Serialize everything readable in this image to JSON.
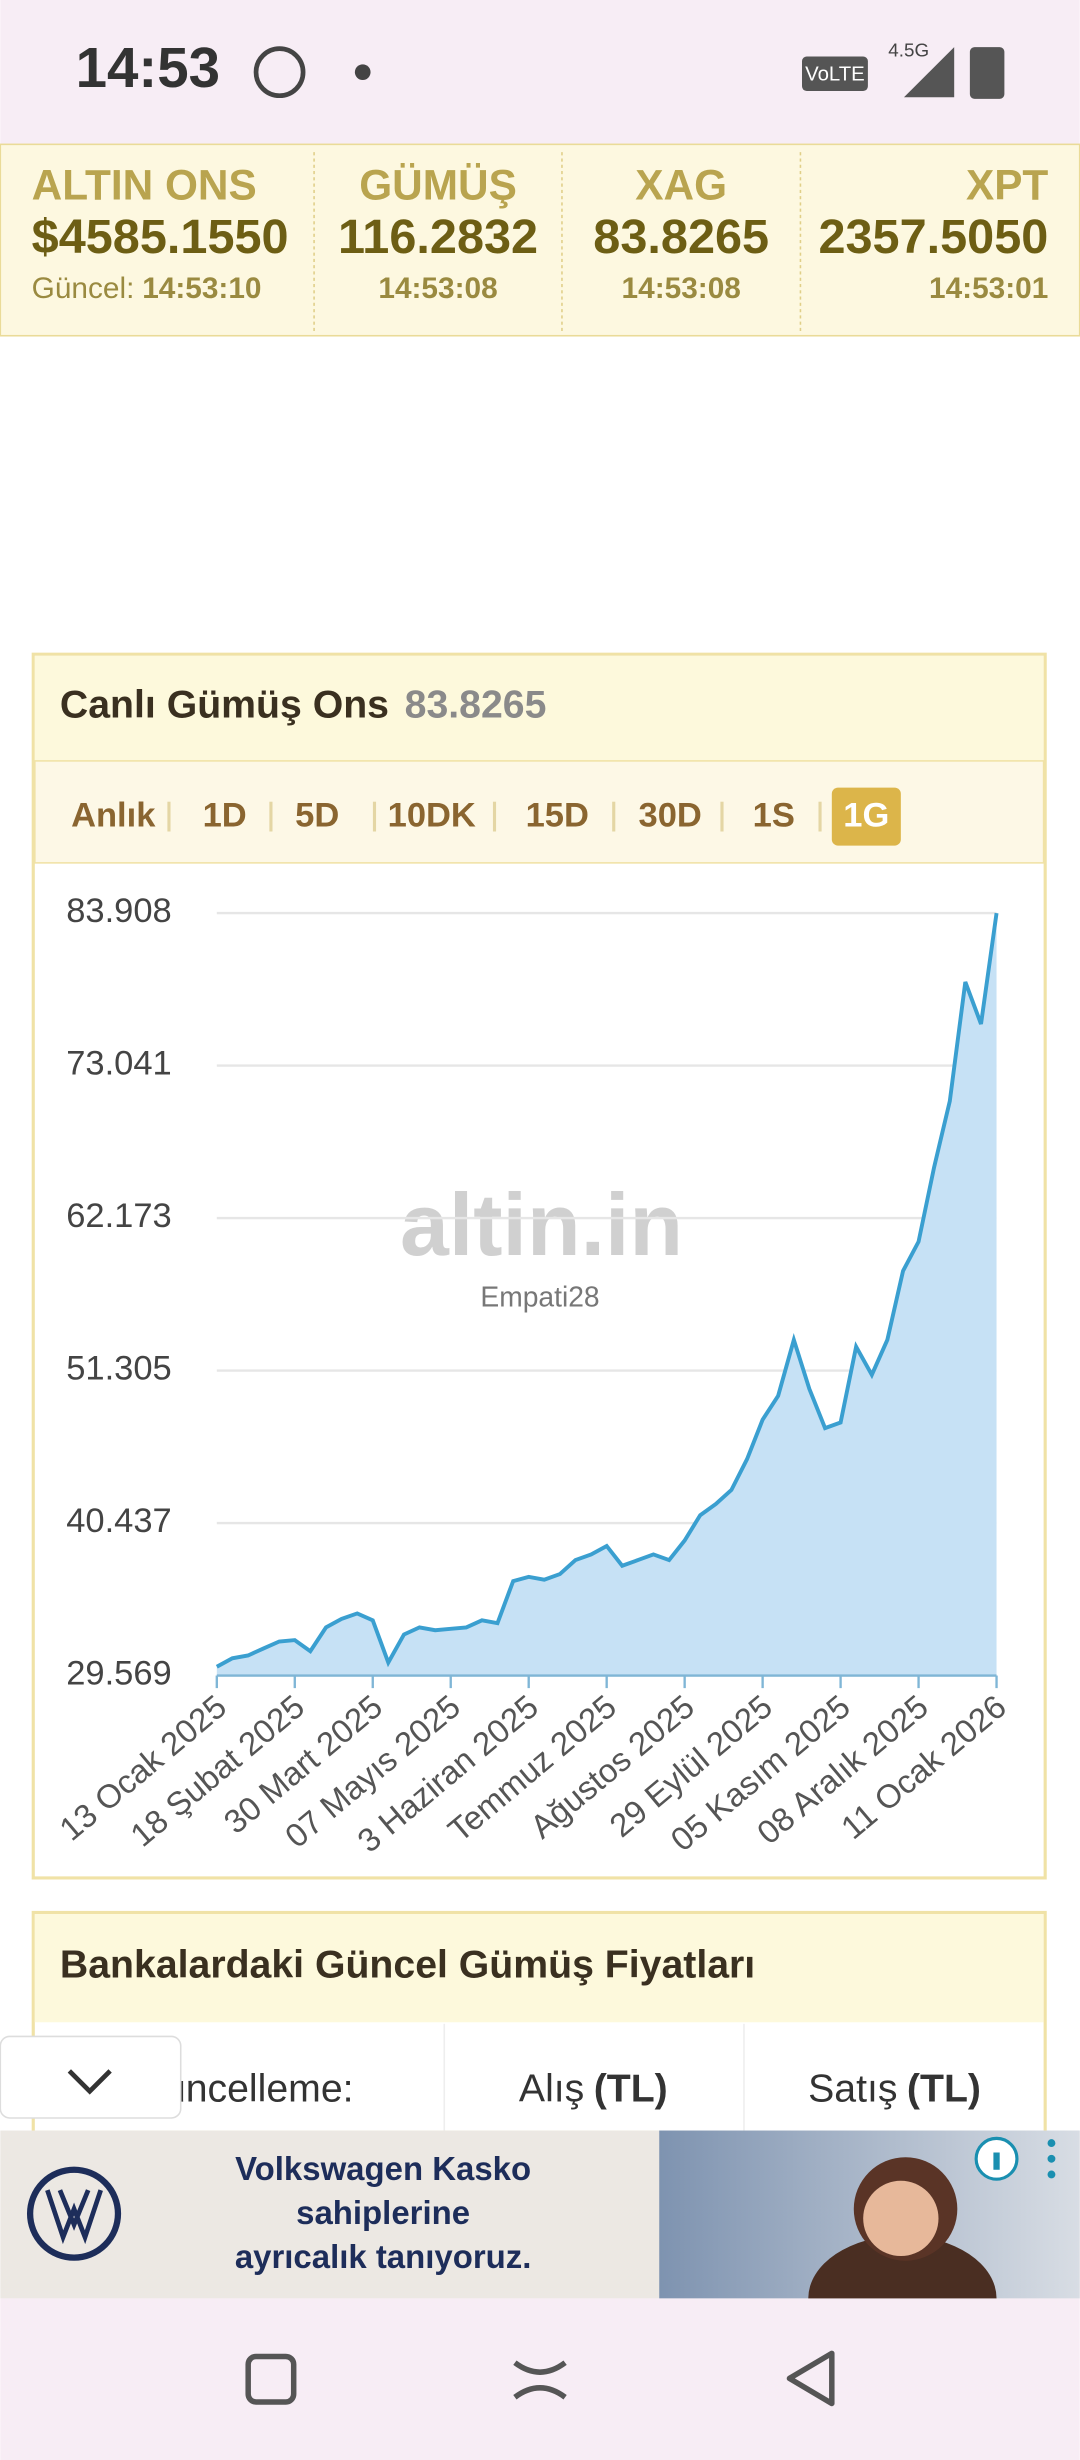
{
  "status_bar": {
    "time": "14:53",
    "volte": "VoLTE",
    "network": "4.5G"
  },
  "ticker": [
    {
      "name": "ALTIN ONS",
      "value": "$4585.1550",
      "time_label": "Güncel:",
      "time": "14:53:10"
    },
    {
      "name": "GÜMÜŞ",
      "value": "116.2832",
      "time": "14:53:08"
    },
    {
      "name": "XAG",
      "value": "83.8265",
      "time": "14:53:08"
    },
    {
      "name": "XPT",
      "value": "2357.5050",
      "time": "14:53:01"
    }
  ],
  "panel": {
    "tabs": [
      "Anlık",
      "1D",
      "5D",
      "10DK",
      "15D",
      "30D",
      "1S",
      "1G"
    ],
    "active_tab": 7,
    "watermark": "altin.in",
    "watermark_sub": "Empati28"
  },
  "chart_data": {
    "type": "area",
    "title": "Canlı Gümüş Ons",
    "current_value": 83.8265,
    "categories": [
      "13 Ocak 2025",
      null,
      null,
      null,
      null,
      "18 Şubat 2025",
      null,
      null,
      null,
      null,
      "30 Mart 2025",
      null,
      null,
      null,
      null,
      "07 Mayıs 2025",
      null,
      null,
      null,
      null,
      "3 Haziran 2025",
      null,
      null,
      null,
      null,
      "Temmuz 2025",
      null,
      null,
      null,
      null,
      "Ağustos 2025",
      null,
      null,
      null,
      null,
      "29 Eylül 2025",
      null,
      null,
      null,
      null,
      "05 Kasım 2025",
      null,
      null,
      null,
      null,
      "08 Aralık 2025",
      null,
      null,
      null,
      null,
      "11 Ocak 2026"
    ],
    "values": [
      30.2,
      30.8,
      31.0,
      31.5,
      32.0,
      32.1,
      31.3,
      33.0,
      33.6,
      34.0,
      33.5,
      30.5,
      32.5,
      33.0,
      32.8,
      32.9,
      33.0,
      33.5,
      33.3,
      36.3,
      36.6,
      36.4,
      36.8,
      37.8,
      38.2,
      38.8,
      37.4,
      37.8,
      38.2,
      37.8,
      39.2,
      41.0,
      41.8,
      42.8,
      45.0,
      47.8,
      49.5,
      53.5,
      50.0,
      47.2,
      47.6,
      53.0,
      51.0,
      53.5,
      58.4,
      60.5,
      65.8,
      70.5,
      79.0,
      76.0,
      83.908
    ],
    "color": "#3a9fd0",
    "fill": "#c6e1f5",
    "ylim": [
      29.569,
      83.908
    ],
    "yticks": [
      29.569,
      40.437,
      51.305,
      62.173,
      73.041,
      83.908
    ],
    "grid": true
  },
  "bank_section": {
    "title": "Bankalardaki Güncel Gümüş Fiyatları",
    "columns": [
      {
        "label": "Güncelleme:"
      },
      {
        "label": "Alış",
        "unit": "(TL)"
      },
      {
        "label": "Satış",
        "unit": "(TL)"
      }
    ]
  },
  "ad": {
    "lines": [
      "Volkswagen Kasko",
      "sahiplerine",
      "ayrıcalık tanıyoruz."
    ]
  }
}
